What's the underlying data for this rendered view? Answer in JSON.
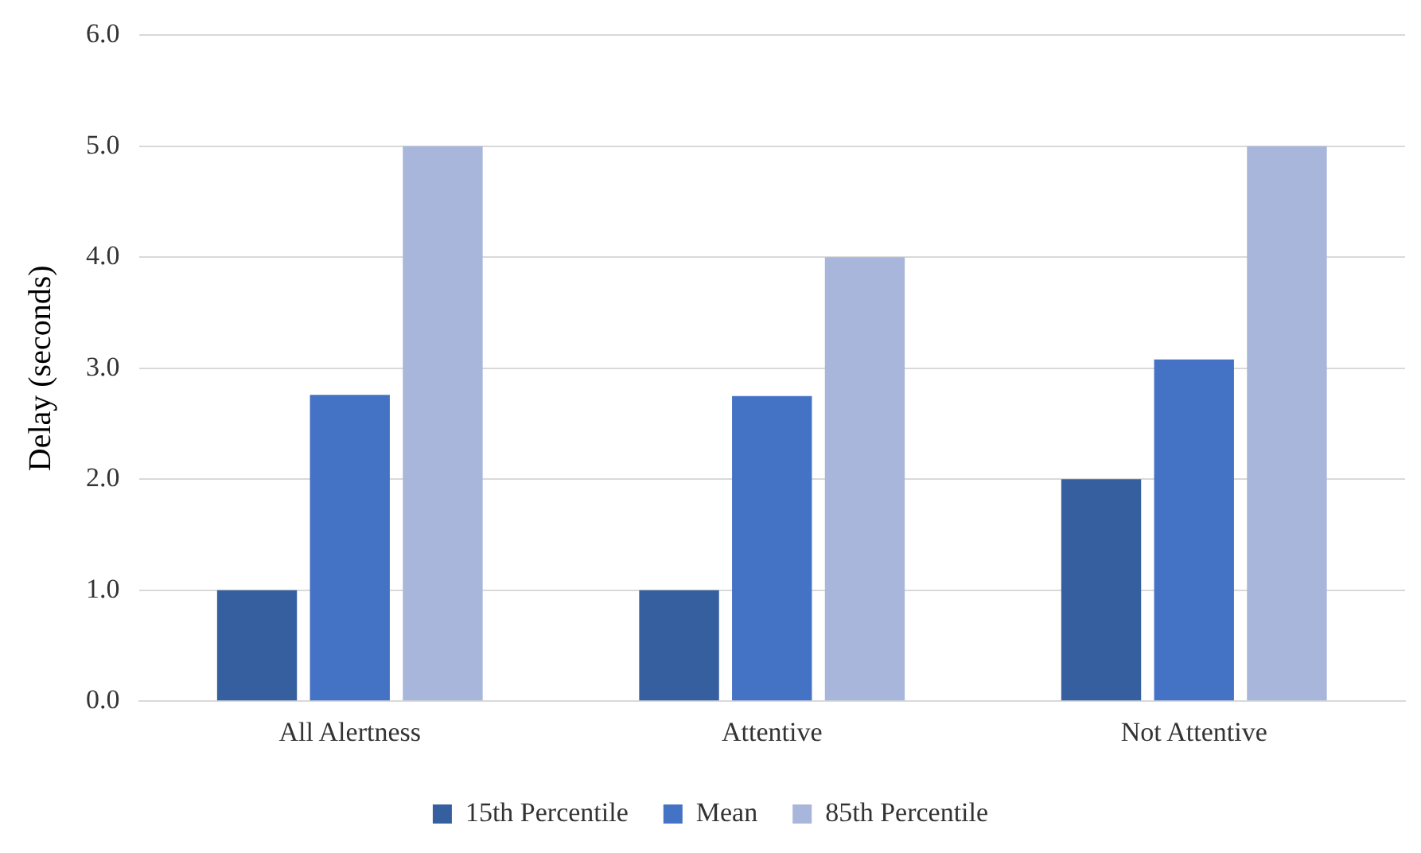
{
  "chart_data": {
    "type": "bar",
    "ylabel": "Delay (seconds)",
    "categories": [
      "All Alertness",
      "Attentive",
      "Not Attentive"
    ],
    "series": [
      {
        "name": "15th Percentile",
        "color": "#365f9f",
        "values": [
          1,
          1,
          2
        ]
      },
      {
        "name": "Mean",
        "color": "#4472c4",
        "values": [
          2.76,
          2.75,
          3.08
        ]
      },
      {
        "name": "85th Percentile",
        "color": "#a9b6db",
        "values": [
          5,
          4,
          5
        ]
      }
    ],
    "ylim": [
      0,
      6
    ],
    "yticks": [
      {
        "value": 0,
        "label": "0.0"
      },
      {
        "value": 1,
        "label": "1.0"
      },
      {
        "value": 2,
        "label": "2.0"
      },
      {
        "value": 3,
        "label": "3.0"
      },
      {
        "value": 4,
        "label": "4.0"
      },
      {
        "value": 5,
        "label": "5.0"
      },
      {
        "value": 6,
        "label": "6.0"
      }
    ],
    "grid": "y",
    "legend": "bottom"
  }
}
